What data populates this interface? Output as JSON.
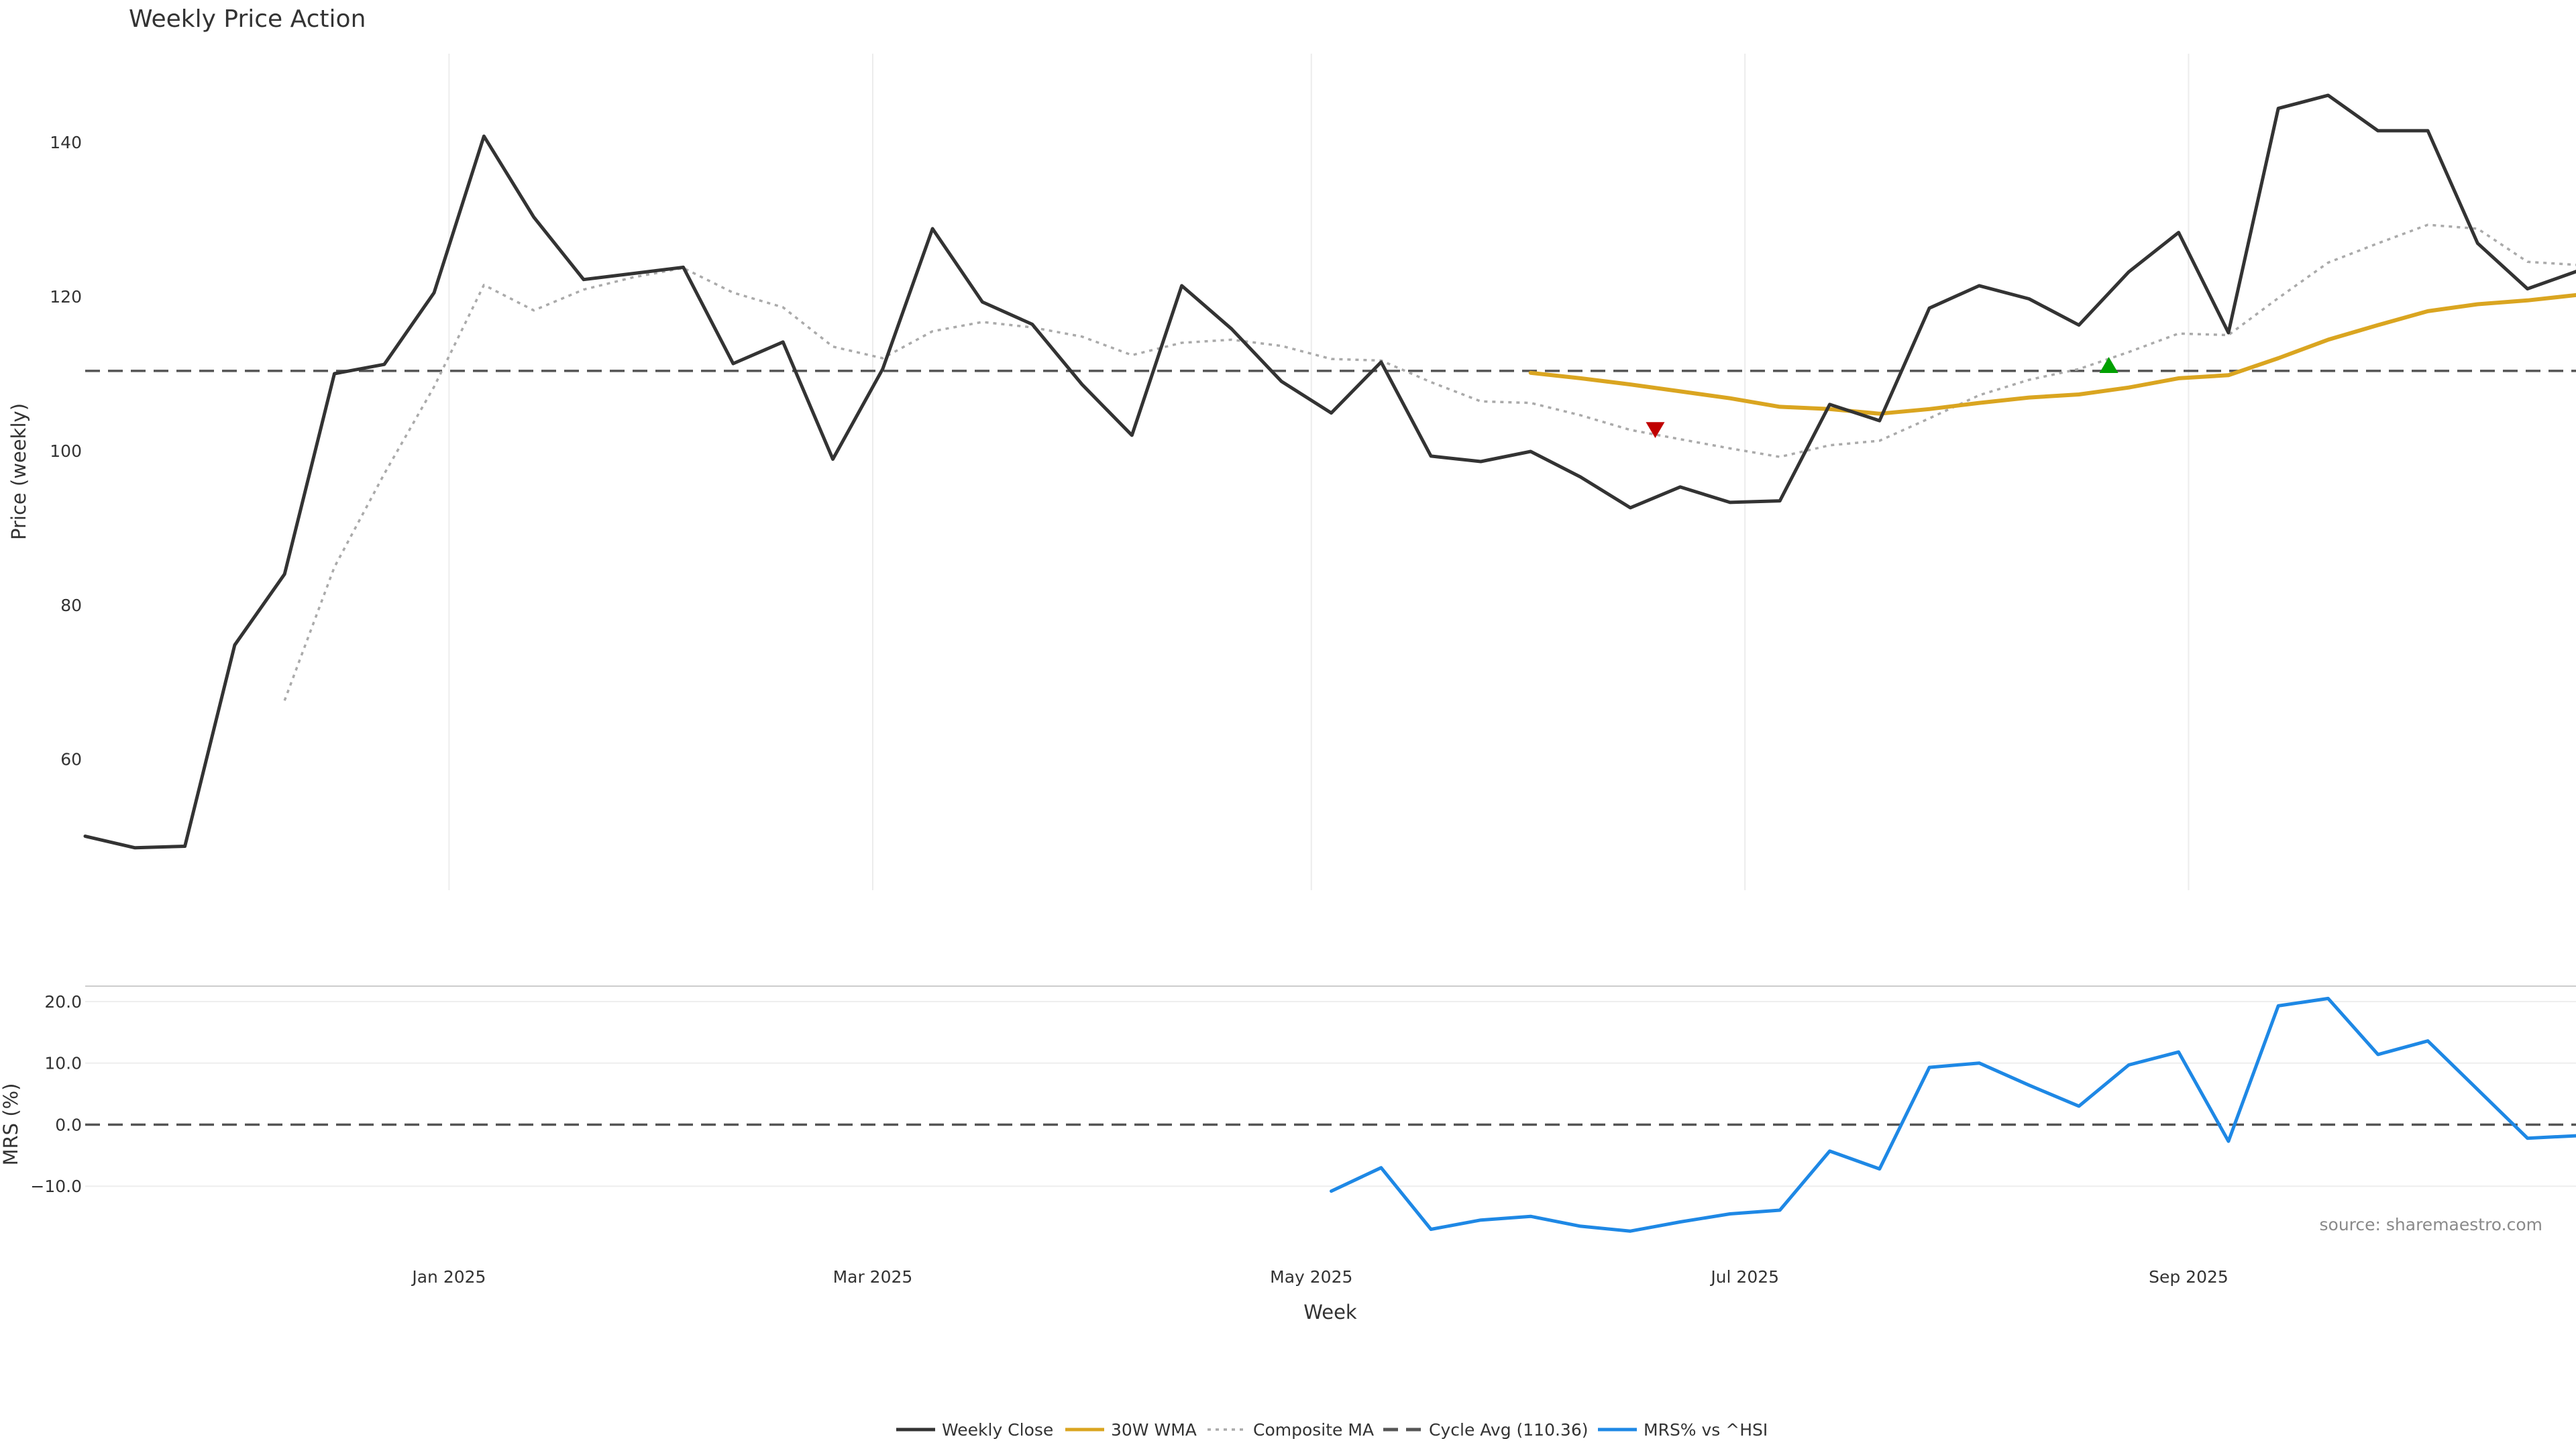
{
  "chart_data": [
    {
      "type": "line",
      "title": "Weekly Price Action",
      "ylabel": "Price (weekly)",
      "ylim": [
        43.0,
        151.5
      ],
      "yticks": [
        60,
        80,
        100,
        120,
        140
      ],
      "xmonths": [
        "Jan 2025",
        "Mar 2025",
        "May 2025",
        "Jul 2025",
        "Sep 2025"
      ],
      "month_week_index": [
        7.3,
        15.8,
        24.6,
        33.3,
        42.2
      ],
      "series": [
        {
          "name": "Weekly Close",
          "color": "#333333",
          "style": "solid",
          "start": 0,
          "values": [
            50.0,
            48.5,
            48.7,
            74.8,
            84.0,
            110.0,
            111.2,
            120.5,
            140.8,
            130.3,
            122.2,
            123.0,
            123.8,
            111.3,
            114.1,
            98.9,
            110.6,
            128.8,
            119.3,
            116.4,
            108.6,
            102.0,
            121.4,
            115.8,
            109.0,
            104.9,
            111.5,
            99.3,
            98.6,
            99.9,
            96.6,
            92.6,
            95.3,
            93.3,
            93.5,
            106.0,
            103.9,
            118.5,
            121.4,
            119.7,
            116.3,
            123.2,
            128.3,
            115.3,
            144.4,
            146.1,
            141.5,
            141.5,
            126.9,
            121.0,
            123.3
          ]
        },
        {
          "name": "30W WMA",
          "color": "#DAA520",
          "style": "solid",
          "start": 29,
          "values": [
            110.1,
            109.4,
            108.6,
            107.7,
            106.8,
            105.7,
            105.4,
            104.8,
            105.4,
            106.2,
            106.9,
            107.3,
            108.2,
            109.4,
            109.8,
            112.0,
            114.4,
            116.3,
            118.1,
            119.0,
            119.5,
            120.2
          ]
        },
        {
          "name": "Composite MA",
          "color": "#aaaaaa",
          "style": "dotted",
          "start": 4,
          "values": [
            67.6,
            84.9,
            97.0,
            108.3,
            121.5,
            118.2,
            120.9,
            122.5,
            123.7,
            120.5,
            118.6,
            113.5,
            112.0,
            115.5,
            116.7,
            116.0,
            114.8,
            112.4,
            114.0,
            114.4,
            113.6,
            111.9,
            111.7,
            108.9,
            106.4,
            106.2,
            104.6,
            102.7,
            101.5,
            100.3,
            99.2,
            100.7,
            101.3,
            104.2,
            107.2,
            109.2,
            110.6,
            112.8,
            115.2,
            115.0,
            119.8,
            124.4,
            126.9,
            129.3,
            128.8,
            124.5,
            124.1
          ]
        }
      ],
      "reference_line": {
        "name": "Cycle Avg (110.36)",
        "value": 110.36,
        "color": "#555555"
      },
      "markers": [
        {
          "kind": "sell",
          "shape": "triangle-down",
          "week": 31.5,
          "value": 102.8,
          "color": "#c00000"
        },
        {
          "kind": "buy",
          "shape": "triangle-up",
          "week": 40.6,
          "value": 111.0,
          "color": "#00a000"
        }
      ]
    },
    {
      "type": "line",
      "ylabel": "MRS (%)",
      "xlabel": "Week",
      "ylim": [
        -20.0,
        22.5
      ],
      "yticks": [
        -10.0,
        0.0,
        10.0,
        20.0
      ],
      "ytick_labels": [
        "−10.0",
        "0.0",
        "10.0",
        "20.0"
      ],
      "xmonths": [
        "Jan 2025",
        "Mar 2025",
        "May 2025",
        "Jul 2025",
        "Sep 2025"
      ],
      "series": [
        {
          "name": "MRS% vs ^HSI",
          "color": "#1E88E5",
          "style": "solid",
          "start": 25,
          "values": [
            -10.8,
            -7.0,
            -17.0,
            -15.5,
            -14.9,
            -16.5,
            -17.3,
            -15.8,
            -14.5,
            -13.9,
            -4.3,
            -7.2,
            9.3,
            10.0,
            6.4,
            3.0,
            9.7,
            11.8,
            -2.7,
            19.3,
            20.5,
            11.4,
            13.6,
            5.7,
            -2.2,
            -1.8
          ]
        }
      ],
      "reference_line": {
        "value": 0.0,
        "color": "#555555"
      }
    }
  ],
  "legend": [
    {
      "label": "Weekly Close",
      "color": "#333333",
      "style": "solid"
    },
    {
      "label": "30W WMA",
      "color": "#DAA520",
      "style": "solid"
    },
    {
      "label": "Composite MA",
      "color": "#aaaaaa",
      "style": "dotted"
    },
    {
      "label": "Cycle Avg (110.36)",
      "color": "#555555",
      "style": "dashed"
    },
    {
      "label": "MRS% vs ^HSI",
      "color": "#1E88E5",
      "style": "solid"
    }
  ],
  "source_note": "source: sharemaestro.com"
}
